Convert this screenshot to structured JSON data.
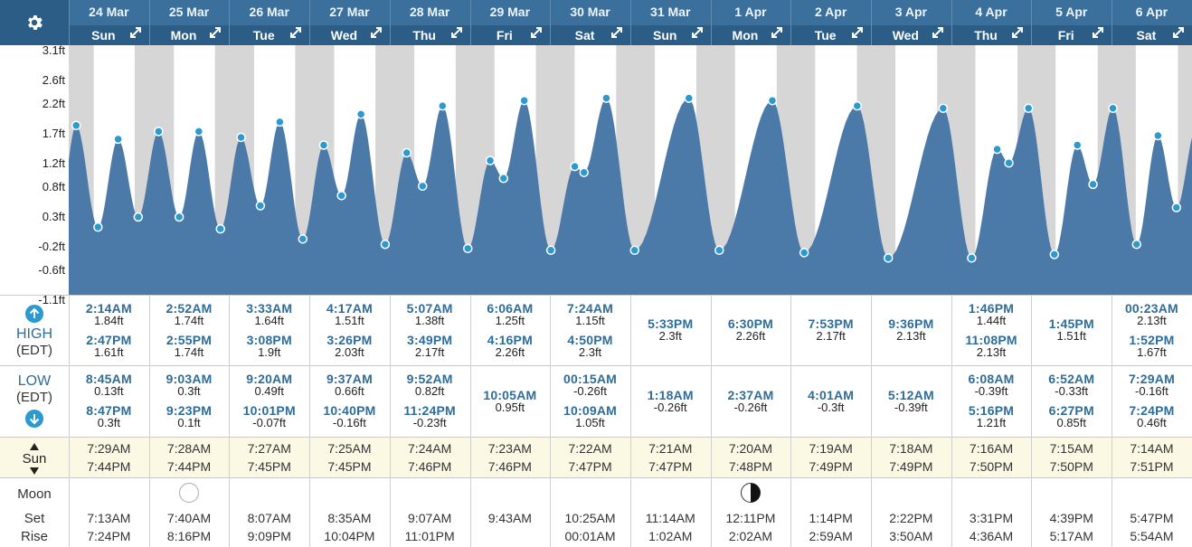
{
  "days": [
    {
      "date": "24 Mar",
      "dow": "Sun"
    },
    {
      "date": "25 Mar",
      "dow": "Mon"
    },
    {
      "date": "26 Mar",
      "dow": "Tue"
    },
    {
      "date": "27 Mar",
      "dow": "Wed"
    },
    {
      "date": "28 Mar",
      "dow": "Thu"
    },
    {
      "date": "29 Mar",
      "dow": "Fri"
    },
    {
      "date": "30 Mar",
      "dow": "Sat"
    },
    {
      "date": "31 Mar",
      "dow": "Sun"
    },
    {
      "date": "1 Apr",
      "dow": "Mon"
    },
    {
      "date": "2 Apr",
      "dow": "Tue"
    },
    {
      "date": "3 Apr",
      "dow": "Wed"
    },
    {
      "date": "4 Apr",
      "dow": "Thu"
    },
    {
      "date": "5 Apr",
      "dow": "Fri"
    },
    {
      "date": "6 Apr",
      "dow": "Sat"
    }
  ],
  "labels": {
    "high": "HIGH",
    "low": "LOW",
    "tz": "(EDT)",
    "sun": "Sun",
    "moon": "Moon",
    "set": "Set",
    "rise": "Rise"
  },
  "icons": {
    "settings": "gear-icon",
    "expand": "expand-icon",
    "high": "arrow-up-circle-icon",
    "low": "arrow-down-circle-icon",
    "sun": "up-down-icon",
    "moon_full": "full-moon-icon",
    "moon_last_quarter": "last-quarter-moon-icon"
  },
  "colors": {
    "header_top": "#3b6f9c",
    "header_bottom": "#2c5d87",
    "tide_fill": "#4b7aa9",
    "tide_point": "#2a9ad0",
    "night_shade": "#d6d6d6",
    "time_text": "#2e6d99",
    "sun_row_bg": "#fbf8e4"
  },
  "chart_data": {
    "type": "area",
    "ylabel": "",
    "yticks": [
      "-1.1ft",
      "-0.6ft",
      "-0.2ft",
      "0.3ft",
      "0.8ft",
      "1.2ft",
      "1.7ft",
      "2.2ft",
      "2.6ft",
      "3.1ft"
    ],
    "ylim": [
      -1.1,
      3.1
    ],
    "grid": false,
    "highs": [
      {
        "day": 0,
        "time": "2:14AM",
        "height": "1.84ft"
      },
      {
        "day": 0,
        "time": "2:47PM",
        "height": "1.61ft"
      },
      {
        "day": 1,
        "time": "2:52AM",
        "height": "1.74ft"
      },
      {
        "day": 1,
        "time": "2:55PM",
        "height": "1.74ft"
      },
      {
        "day": 2,
        "time": "3:33AM",
        "height": "1.64ft"
      },
      {
        "day": 2,
        "time": "3:08PM",
        "height": "1.9ft"
      },
      {
        "day": 3,
        "time": "4:17AM",
        "height": "1.51ft"
      },
      {
        "day": 3,
        "time": "3:26PM",
        "height": "2.03ft"
      },
      {
        "day": 4,
        "time": "5:07AM",
        "height": "1.38ft"
      },
      {
        "day": 4,
        "time": "3:49PM",
        "height": "2.17ft"
      },
      {
        "day": 5,
        "time": "6:06AM",
        "height": "1.25ft"
      },
      {
        "day": 5,
        "time": "4:16PM",
        "height": "2.26ft"
      },
      {
        "day": 6,
        "time": "7:24AM",
        "height": "1.15ft"
      },
      {
        "day": 6,
        "time": "4:50PM",
        "height": "2.3ft"
      },
      {
        "day": 7,
        "time": "5:33PM",
        "height": "2.3ft"
      },
      {
        "day": 8,
        "time": "6:30PM",
        "height": "2.26ft"
      },
      {
        "day": 9,
        "time": "7:53PM",
        "height": "2.17ft"
      },
      {
        "day": 10,
        "time": "9:36PM",
        "height": "2.13ft"
      },
      {
        "day": 11,
        "time": "1:46PM",
        "height": "1.44ft"
      },
      {
        "day": 11,
        "time": "11:08PM",
        "height": "2.13ft"
      },
      {
        "day": 12,
        "time": "1:45PM",
        "height": "1.51ft"
      },
      {
        "day": 13,
        "time": "00:23AM",
        "height": "2.13ft"
      },
      {
        "day": 13,
        "time": "1:52PM",
        "height": "1.67ft"
      }
    ],
    "lows": [
      {
        "day": 0,
        "time": "8:45AM",
        "height": "0.13ft"
      },
      {
        "day": 0,
        "time": "8:47PM",
        "height": "0.3ft"
      },
      {
        "day": 1,
        "time": "9:03AM",
        "height": "0.3ft"
      },
      {
        "day": 1,
        "time": "9:23PM",
        "height": "0.1ft"
      },
      {
        "day": 2,
        "time": "9:20AM",
        "height": "0.49ft"
      },
      {
        "day": 2,
        "time": "10:01PM",
        "height": "-0.07ft"
      },
      {
        "day": 3,
        "time": "9:37AM",
        "height": "0.66ft"
      },
      {
        "day": 3,
        "time": "10:40PM",
        "height": "-0.16ft"
      },
      {
        "day": 4,
        "time": "9:52AM",
        "height": "0.82ft"
      },
      {
        "day": 4,
        "time": "11:24PM",
        "height": "-0.23ft"
      },
      {
        "day": 5,
        "time": "10:05AM",
        "height": "0.95ft"
      },
      {
        "day": 6,
        "time": "00:15AM",
        "height": "-0.26ft"
      },
      {
        "day": 6,
        "time": "10:09AM",
        "height": "1.05ft"
      },
      {
        "day": 7,
        "time": "1:18AM",
        "height": "-0.26ft"
      },
      {
        "day": 8,
        "time": "2:37AM",
        "height": "-0.26ft"
      },
      {
        "day": 9,
        "time": "4:01AM",
        "height": "-0.3ft"
      },
      {
        "day": 10,
        "time": "5:12AM",
        "height": "-0.39ft"
      },
      {
        "day": 11,
        "time": "6:08AM",
        "height": "-0.39ft"
      },
      {
        "day": 11,
        "time": "5:16PM",
        "height": "1.21ft"
      },
      {
        "day": 12,
        "time": "6:52AM",
        "height": "-0.33ft"
      },
      {
        "day": 12,
        "time": "6:27PM",
        "height": "0.85ft"
      },
      {
        "day": 13,
        "time": "7:29AM",
        "height": "-0.16ft"
      },
      {
        "day": 13,
        "time": "7:24PM",
        "height": "0.46ft"
      }
    ],
    "sun": [
      {
        "rise": "7:29AM",
        "set": "7:44PM"
      },
      {
        "rise": "7:28AM",
        "set": "7:44PM"
      },
      {
        "rise": "7:27AM",
        "set": "7:45PM"
      },
      {
        "rise": "7:25AM",
        "set": "7:45PM"
      },
      {
        "rise": "7:24AM",
        "set": "7:46PM"
      },
      {
        "rise": "7:23AM",
        "set": "7:46PM"
      },
      {
        "rise": "7:22AM",
        "set": "7:47PM"
      },
      {
        "rise": "7:21AM",
        "set": "7:47PM"
      },
      {
        "rise": "7:20AM",
        "set": "7:48PM"
      },
      {
        "rise": "7:19AM",
        "set": "7:49PM"
      },
      {
        "rise": "7:18AM",
        "set": "7:49PM"
      },
      {
        "rise": "7:16AM",
        "set": "7:50PM"
      },
      {
        "rise": "7:15AM",
        "set": "7:50PM"
      },
      {
        "rise": "7:14AM",
        "set": "7:51PM"
      }
    ],
    "moon": [
      {
        "set": "7:13AM",
        "rise": "7:24PM",
        "phase": ""
      },
      {
        "set": "7:40AM",
        "rise": "8:16PM",
        "phase": "full"
      },
      {
        "set": "8:07AM",
        "rise": "9:09PM",
        "phase": ""
      },
      {
        "set": "8:35AM",
        "rise": "10:04PM",
        "phase": ""
      },
      {
        "set": "9:07AM",
        "rise": "11:01PM",
        "phase": ""
      },
      {
        "set": "9:43AM",
        "rise": "",
        "phase": ""
      },
      {
        "set": "10:25AM",
        "rise": "00:01AM",
        "phase": ""
      },
      {
        "set": "11:14AM",
        "rise": "1:02AM",
        "phase": ""
      },
      {
        "set": "12:11PM",
        "rise": "2:02AM",
        "phase": "last-quarter"
      },
      {
        "set": "1:14PM",
        "rise": "2:59AM",
        "phase": ""
      },
      {
        "set": "2:22PM",
        "rise": "3:50AM",
        "phase": ""
      },
      {
        "set": "3:31PM",
        "rise": "4:36AM",
        "phase": ""
      },
      {
        "set": "4:39PM",
        "rise": "5:17AM",
        "phase": ""
      },
      {
        "set": "5:47PM",
        "rise": "5:54AM",
        "phase": ""
      }
    ]
  }
}
